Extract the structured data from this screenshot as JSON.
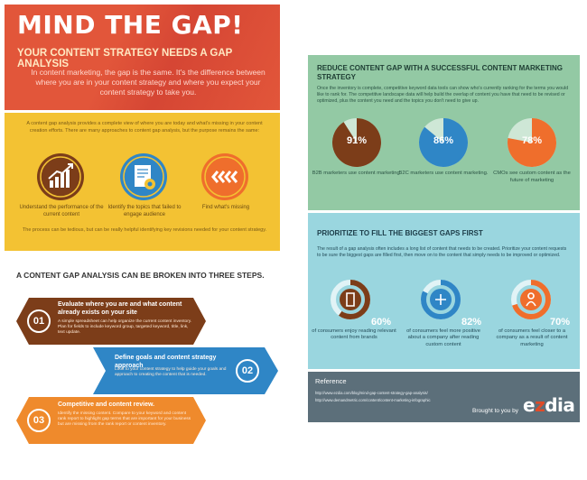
{
  "hero": {
    "title": "MIND THE GAP!",
    "subtitle": "YOUR CONTENT STRATEGY NEEDS A GAP ANALYSIS",
    "body": "In content marketing, the gap is the same. It's the difference between where you are in your content strategy and where you expect your content strategy to take you."
  },
  "analysis": {
    "intro": "A content gap analysis provides a complete view of where you are today and what's missing in your content creation efforts. There are many approaches to content gap analysis, but the purpose remains the same:",
    "items": [
      {
        "icon": "growth-chart-icon",
        "caption": "Understand the performance of the current content"
      },
      {
        "icon": "document-gear-icon",
        "caption": "Identify the topics that failed to engage audience"
      },
      {
        "icon": "chevrons-left-icon",
        "caption": "Find what's missing"
      }
    ],
    "outro": "The process can be tedious, but can be really helpful identifying key revisions needed for your content strategy."
  },
  "steps": {
    "title": "A CONTENT GAP ANALYSIS CAN BE BROKEN INTO THREE STEPS.",
    "items": [
      {
        "num": "01",
        "title": "Evaluate where you are and what content already exists on your site",
        "desc": "A simple spreadsheet can help organize the current content inventory. Plan for fields to include keyword group, targeted keyword, title, link, text update.",
        "color": "#7c3d19"
      },
      {
        "num": "02",
        "title": "Define goals and content strategy approach",
        "desc": "Look to your content strategy to help guide your goals and approach to creating the content that is needed.",
        "color": "#2f86c6"
      },
      {
        "num": "03",
        "title": "Competitive and content review.",
        "desc": "Identify the missing content. Compare to your keyword and content rank report to highlight gap terms that are important for your business but are missing from the rank report or content inventory.",
        "color": "#ef8a2c"
      }
    ]
  },
  "reduce": {
    "title": "REDUCE CONTENT GAP WITH A SUCCESSFUL CONTENT MARKETING STRATEGY",
    "intro": "Once the inventory is complete, competitive keyword data tools can show who's currently ranking for the terms you would like to rank for. The competitive landscape data will help build the overlap of content you have that need to be revised or optimized, plus the content you need and the topics you don't need to give up.",
    "stats": [
      {
        "pct": "91%",
        "value": 91,
        "caption": "B2B marketers use content marketing.",
        "color": "#7c3d19"
      },
      {
        "pct": "86%",
        "value": 86,
        "caption": "B2C marketers use content marketing.",
        "color": "#2f86c6"
      },
      {
        "pct": "78%",
        "value": 78,
        "caption": "CMOs see custom content as the future of marketing",
        "color": "#ef6e2c"
      }
    ]
  },
  "prioritize": {
    "title": "PRIORITIZE TO FILL THE BIGGEST GAPS FIRST",
    "intro": "The result of a gap analysis often includes a long list of content that needs to be created. Prioritize your content requests to be sure the biggest gaps are filled first, then move on to the content that simply needs to be improved or optimized.",
    "stats": [
      {
        "pct": "60%",
        "value": 60,
        "icon": "tablet-icon",
        "caption": "of consumers enjoy reading relevant content from brands",
        "color": "#7c3d19"
      },
      {
        "pct": "82%",
        "value": 82,
        "icon": "plus-icon",
        "caption": "of consumers feel more positive about a company after reading custom content",
        "color": "#2f86c6"
      },
      {
        "pct": "70%",
        "value": 70,
        "icon": "person-icon",
        "caption": "of consumers feel closer to a company as a result of content marketing",
        "color": "#ef6e2c"
      }
    ]
  },
  "reference": {
    "title": "Reference",
    "urls": [
      "http://www.ezdia.com/blog/mind-gap-content-strategy-gap-analysis/",
      "http://www.demandmetric.com/content/content-marketing-infographic"
    ],
    "brought": "Brought to you by",
    "logo_a": "e",
    "logo_z": "z",
    "logo_b": "dia"
  }
}
